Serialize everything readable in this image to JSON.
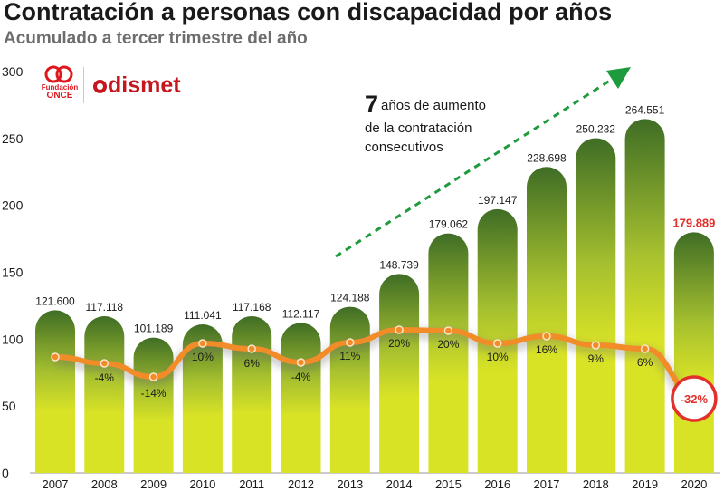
{
  "title": "Contratación a personas con discapacidad por años",
  "subtitle": "Acumulado a tercer trimestre del año",
  "logos": {
    "once_line1": "Fundación",
    "once_line2": "ONCE",
    "dismet": "dismet"
  },
  "annotation": {
    "number": "7",
    "line1_rest": "años de aumento",
    "line2": "de la contratación",
    "line3": "consecutivos"
  },
  "colors": {
    "bar_top": "#3f6d25",
    "bar_mid": "#a6c02f",
    "bar_bottom": "#d9e326",
    "line": "#f28c28",
    "highlight": "#e2302b",
    "arrow": "#1e9b3c"
  },
  "chart_data": {
    "type": "bar",
    "title": "Contratación a personas con discapacidad por años",
    "subtitle": "Acumulado a tercer trimestre del año",
    "categories": [
      "2007",
      "2008",
      "2009",
      "2010",
      "2011",
      "2012",
      "2013",
      "2014",
      "2015",
      "2016",
      "2017",
      "2018",
      "2019",
      "2020"
    ],
    "values": [
      121600,
      117118,
      101189,
      111041,
      117168,
      112117,
      124188,
      148739,
      179062,
      197147,
      228698,
      250232,
      264551,
      179889
    ],
    "value_labels": [
      "121.600",
      "117.118",
      "101.189",
      "111.041",
      "117.168",
      "112.117",
      "124.188",
      "148.739",
      "179.062",
      "197.147",
      "228.698",
      "250.232",
      "264.551",
      "179.889"
    ],
    "yticks": [
      "0",
      "50",
      "100",
      "150",
      "200",
      "250",
      "300"
    ],
    "ylim": [
      0,
      300000
    ],
    "growth_series": {
      "type": "line",
      "values_percent": [
        null,
        -4,
        -14,
        10,
        6,
        -4,
        11,
        20,
        20,
        10,
        16,
        9,
        6,
        -32
      ],
      "labels": [
        "",
        "-4%",
        "-14%",
        "10%",
        "6%",
        "-4%",
        "11%",
        "20%",
        "20%",
        "10%",
        "16%",
        "9%",
        "6%",
        "-32%"
      ]
    },
    "highlight_category": "2020",
    "grid": false,
    "legend": "none"
  }
}
